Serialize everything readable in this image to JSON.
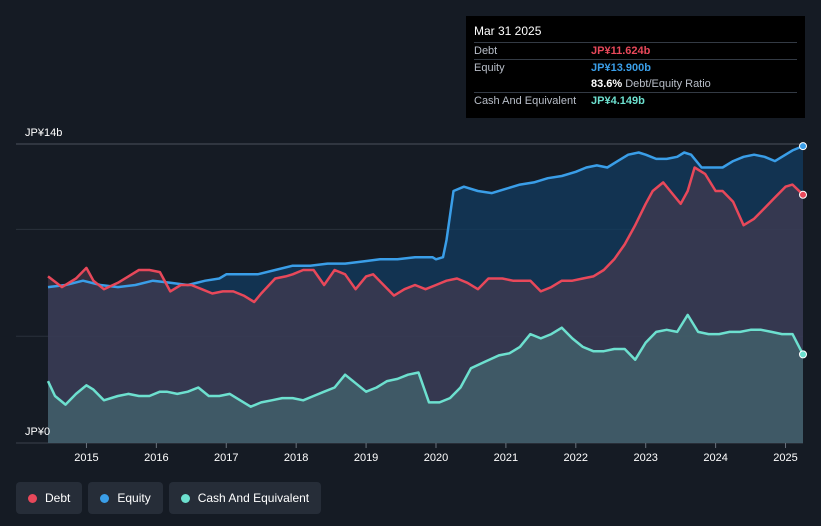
{
  "tooltip": {
    "date": "Mar 31 2025",
    "rows": [
      {
        "name": "Debt",
        "value": "JP¥11.624b",
        "color": "#e8485a"
      },
      {
        "name": "Equity",
        "value": "JP¥13.900b",
        "color": "#3a9ee8"
      },
      {
        "name": "",
        "value": "83.6%",
        "extra": "Debt/Equity Ratio",
        "color": "#ffffff"
      },
      {
        "name": "Cash And Equivalent",
        "value": "JP¥4.149b",
        "color": "#6de0cf"
      }
    ]
  },
  "legend": [
    {
      "label": "Debt",
      "color": "#e8485a"
    },
    {
      "label": "Equity",
      "color": "#3a9ee8"
    },
    {
      "label": "Cash And Equivalent",
      "color": "#6de0cf"
    }
  ],
  "chart_data": {
    "type": "area",
    "y_unit_labels": {
      "top": "JP¥14b",
      "bottom": "JP¥0"
    },
    "ylim": [
      0,
      14
    ],
    "xlim": [
      2014.45,
      2025.25
    ],
    "x_ticks": [
      "2015",
      "2016",
      "2017",
      "2018",
      "2019",
      "2020",
      "2021",
      "2022",
      "2023",
      "2024",
      "2025"
    ],
    "grid": true,
    "legend_position": "bottom-left",
    "series": [
      {
        "name": "Debt",
        "color": "#e8485a",
        "x": [
          2014.45,
          2014.65,
          2014.85,
          2015.0,
          2015.1,
          2015.25,
          2015.45,
          2015.6,
          2015.75,
          2015.9,
          2016.05,
          2016.2,
          2016.35,
          2016.5,
          2016.65,
          2016.8,
          2016.95,
          2017.1,
          2017.25,
          2017.4,
          2017.5,
          2017.7,
          2017.85,
          2017.95,
          2018.1,
          2018.25,
          2018.4,
          2018.55,
          2018.7,
          2018.85,
          2019.0,
          2019.1,
          2019.25,
          2019.4,
          2019.55,
          2019.7,
          2019.85,
          2020.0,
          2020.15,
          2020.3,
          2020.45,
          2020.6,
          2020.75,
          2020.95,
          2021.1,
          2021.2,
          2021.35,
          2021.5,
          2021.65,
          2021.8,
          2021.95,
          2022.1,
          2022.25,
          2022.4,
          2022.55,
          2022.7,
          2022.85,
          2023.0,
          2023.1,
          2023.25,
          2023.35,
          2023.5,
          2023.6,
          2023.7,
          2023.85,
          2024.0,
          2024.1,
          2024.25,
          2024.4,
          2024.55,
          2024.7,
          2024.85,
          2025.0,
          2025.1,
          2025.25
        ],
        "values": [
          7.8,
          7.3,
          7.7,
          8.2,
          7.6,
          7.2,
          7.5,
          7.8,
          8.1,
          8.1,
          8.0,
          7.1,
          7.4,
          7.4,
          7.2,
          7.0,
          7.1,
          7.1,
          6.9,
          6.6,
          7.0,
          7.7,
          7.8,
          7.9,
          8.1,
          8.1,
          7.4,
          8.1,
          7.9,
          7.2,
          7.8,
          7.9,
          7.4,
          6.9,
          7.2,
          7.4,
          7.2,
          7.4,
          7.6,
          7.7,
          7.5,
          7.2,
          7.7,
          7.7,
          7.6,
          7.6,
          7.6,
          7.1,
          7.3,
          7.6,
          7.6,
          7.7,
          7.8,
          8.1,
          8.6,
          9.3,
          10.2,
          11.2,
          11.8,
          12.2,
          11.8,
          11.2,
          11.8,
          12.9,
          12.6,
          11.8,
          11.8,
          11.3,
          10.2,
          10.5,
          11.0,
          11.5,
          12.0,
          12.1,
          11.624
        ]
      },
      {
        "name": "Equity",
        "color": "#3a9ee8",
        "x": [
          2014.45,
          2014.7,
          2014.95,
          2015.2,
          2015.45,
          2015.7,
          2015.95,
          2016.2,
          2016.45,
          2016.7,
          2016.9,
          2017.0,
          2017.2,
          2017.45,
          2017.7,
          2017.95,
          2018.2,
          2018.45,
          2018.7,
          2018.95,
          2019.2,
          2019.45,
          2019.7,
          2019.95,
          2020.0,
          2020.1,
          2020.15,
          2020.25,
          2020.4,
          2020.6,
          2020.8,
          2021.0,
          2021.2,
          2021.4,
          2021.6,
          2021.8,
          2022.0,
          2022.15,
          2022.3,
          2022.45,
          2022.6,
          2022.75,
          2022.9,
          2023.0,
          2023.15,
          2023.3,
          2023.45,
          2023.55,
          2023.65,
          2023.8,
          2024.0,
          2024.1,
          2024.25,
          2024.4,
          2024.55,
          2024.7,
          2024.85,
          2025.0,
          2025.1,
          2025.25
        ],
        "values": [
          7.3,
          7.4,
          7.6,
          7.4,
          7.3,
          7.4,
          7.6,
          7.5,
          7.4,
          7.6,
          7.7,
          7.9,
          7.9,
          7.9,
          8.1,
          8.3,
          8.3,
          8.4,
          8.4,
          8.5,
          8.6,
          8.6,
          8.7,
          8.7,
          8.6,
          8.7,
          9.5,
          11.8,
          12.0,
          11.8,
          11.7,
          11.9,
          12.1,
          12.2,
          12.4,
          12.5,
          12.7,
          12.9,
          13.0,
          12.9,
          13.2,
          13.5,
          13.6,
          13.5,
          13.3,
          13.3,
          13.4,
          13.6,
          13.5,
          12.9,
          12.9,
          12.9,
          13.2,
          13.4,
          13.5,
          13.4,
          13.2,
          13.5,
          13.7,
          13.9
        ]
      },
      {
        "name": "Cash And Equivalent",
        "color": "#6de0cf",
        "x": [
          2014.45,
          2014.55,
          2014.7,
          2014.85,
          2015.0,
          2015.1,
          2015.25,
          2015.45,
          2015.6,
          2015.75,
          2015.9,
          2016.05,
          2016.15,
          2016.3,
          2016.45,
          2016.6,
          2016.75,
          2016.9,
          2017.05,
          2017.2,
          2017.35,
          2017.5,
          2017.65,
          2017.8,
          2017.95,
          2018.1,
          2018.25,
          2018.4,
          2018.55,
          2018.7,
          2018.85,
          2019.0,
          2019.15,
          2019.3,
          2019.45,
          2019.6,
          2019.75,
          2019.9,
          2020.05,
          2020.2,
          2020.35,
          2020.5,
          2020.7,
          2020.9,
          2021.05,
          2021.2,
          2021.35,
          2021.5,
          2021.65,
          2021.8,
          2021.95,
          2022.1,
          2022.25,
          2022.4,
          2022.55,
          2022.7,
          2022.85,
          2023.0,
          2023.15,
          2023.3,
          2023.45,
          2023.6,
          2023.75,
          2023.9,
          2024.05,
          2024.2,
          2024.35,
          2024.5,
          2024.65,
          2024.8,
          2024.95,
          2025.1,
          2025.25
        ],
        "values": [
          2.9,
          2.2,
          1.8,
          2.3,
          2.7,
          2.5,
          2.0,
          2.2,
          2.3,
          2.2,
          2.2,
          2.4,
          2.4,
          2.3,
          2.4,
          2.6,
          2.2,
          2.2,
          2.3,
          2.0,
          1.7,
          1.9,
          2.0,
          2.1,
          2.1,
          2.0,
          2.2,
          2.4,
          2.6,
          3.2,
          2.8,
          2.4,
          2.6,
          2.9,
          3.0,
          3.2,
          3.3,
          1.9,
          1.9,
          2.1,
          2.6,
          3.5,
          3.8,
          4.1,
          4.2,
          4.5,
          5.1,
          4.9,
          5.1,
          5.4,
          4.9,
          4.5,
          4.3,
          4.3,
          4.4,
          4.4,
          3.9,
          4.7,
          5.2,
          5.3,
          5.2,
          6.0,
          5.2,
          5.1,
          5.1,
          5.2,
          5.2,
          5.3,
          5.3,
          5.2,
          5.1,
          5.1,
          4.149
        ]
      }
    ]
  }
}
